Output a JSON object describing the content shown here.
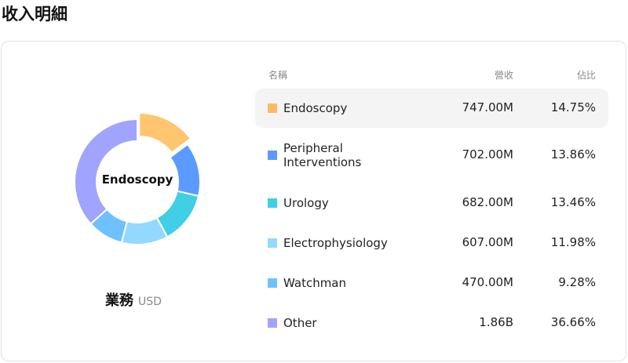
{
  "title": "收入明細",
  "center_label": "Endoscopy",
  "segment": {
    "label": "業務",
    "currency": "USD"
  },
  "headers": {
    "name": "名稱",
    "revenue": "營收",
    "share": "佔比"
  },
  "rows": [
    {
      "name": "Endoscopy",
      "revenue": "747.00M",
      "share": "14.75%",
      "color": "#FDBA65"
    },
    {
      "name": "Peripheral Interventions",
      "revenue": "702.00M",
      "share": "13.86%",
      "color": "#5B9BFF"
    },
    {
      "name": "Urology",
      "revenue": "682.00M",
      "share": "13.46%",
      "color": "#40CFE6"
    },
    {
      "name": "Electrophysiology",
      "revenue": "607.00M",
      "share": "11.98%",
      "color": "#93D8FF"
    },
    {
      "name": "Watchman",
      "revenue": "470.00M",
      "share": "9.28%",
      "color": "#6EC1FF"
    },
    {
      "name": "Other",
      "revenue": "1.86B",
      "share": "36.66%",
      "color": "#A0A4FF"
    }
  ],
  "chart_data": {
    "type": "pie",
    "variant": "donut",
    "highlighted": "Endoscopy",
    "categories": [
      "Endoscopy",
      "Peripheral Interventions",
      "Urology",
      "Electrophysiology",
      "Watchman",
      "Other"
    ],
    "values": [
      14.75,
      13.86,
      13.46,
      11.98,
      9.28,
      36.66
    ],
    "colors": [
      "#FFC66F",
      "#5B9BFF",
      "#40CFE6",
      "#93D8FF",
      "#6EC1FF",
      "#A0A4FF"
    ]
  }
}
